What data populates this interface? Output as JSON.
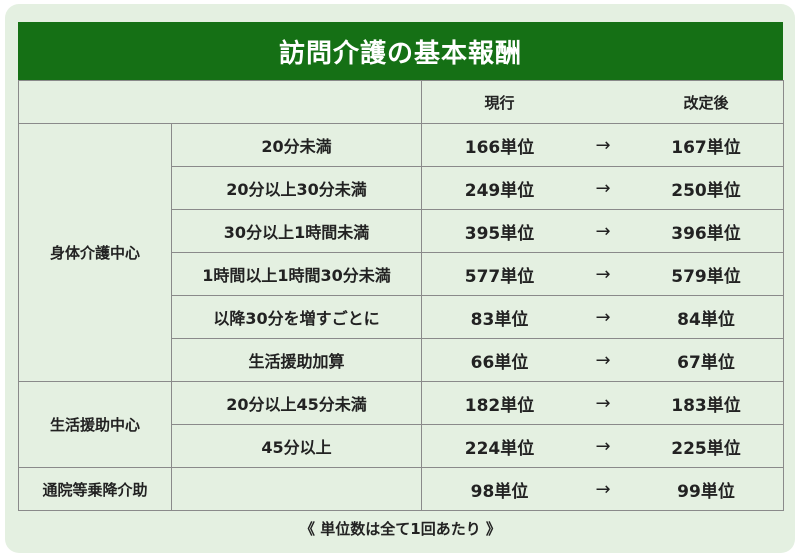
{
  "title": "訪問介護の基本報酬",
  "header": {
    "current": "現行",
    "revised": "改定後"
  },
  "arrow": "→",
  "groups": [
    {
      "category": "身体介護中心",
      "rows": [
        {
          "label": "20分未満",
          "current": "166単位",
          "revised": "167単位"
        },
        {
          "label": "20分以上30分未満",
          "current": "249単位",
          "revised": "250単位"
        },
        {
          "label": "30分以上1時間未満",
          "current": "395単位",
          "revised": "396単位"
        },
        {
          "label": "1時間以上1時間30分未満",
          "current": "577単位",
          "revised": "579単位"
        },
        {
          "label": "以降30分を増すごとに",
          "current": "83単位",
          "revised": "84単位"
        },
        {
          "label": "生活援助加算",
          "current": "66単位",
          "revised": "67単位"
        }
      ]
    },
    {
      "category": "生活援助中心",
      "rows": [
        {
          "label": "20分以上45分未満",
          "current": "182単位",
          "revised": "183単位"
        },
        {
          "label": "45分以上",
          "current": "224単位",
          "revised": "225単位"
        }
      ]
    },
    {
      "category": "通院等乗降介助",
      "rows": [
        {
          "label": "",
          "current": "98単位",
          "revised": "99単位"
        }
      ]
    }
  ],
  "footnote": "《 単位数は全て1回あたり 》"
}
